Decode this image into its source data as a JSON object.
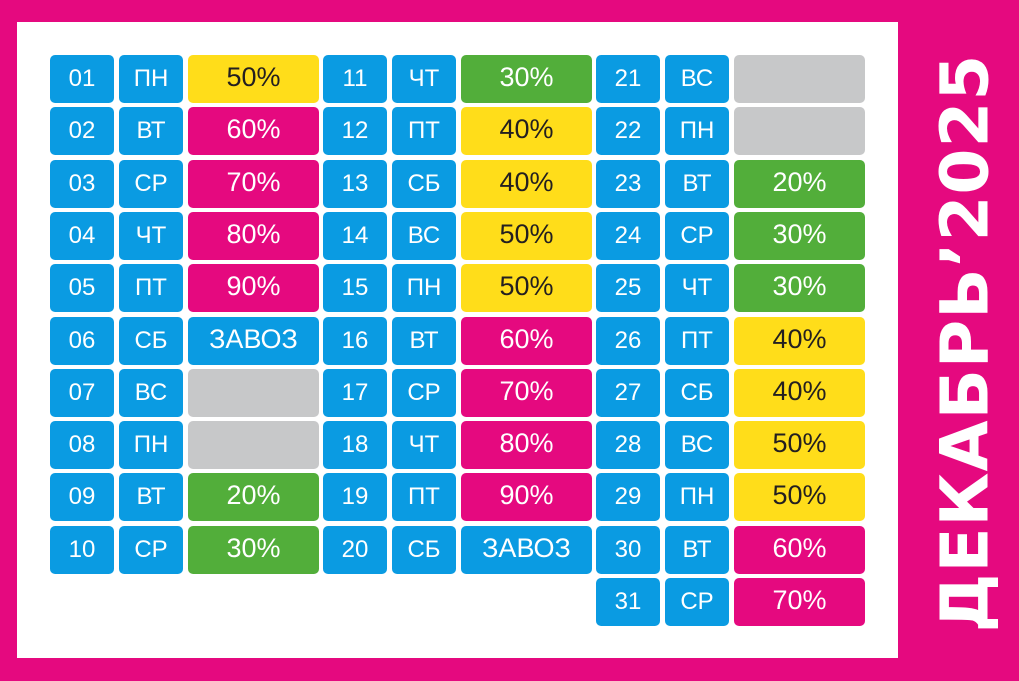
{
  "title": "ДЕКАБРЬ’2025",
  "colors": {
    "background": "#e5097f",
    "panel": "#ffffff",
    "blue": "#0a9be2",
    "yellow": "#ffdd1a",
    "pink": "#e5097f",
    "green": "#52ae3a",
    "gray": "#c7c8c9"
  },
  "columns": [
    {
      "days": [
        {
          "num": "01",
          "dow": "ПН",
          "label": "50%",
          "color": "yellow"
        },
        {
          "num": "02",
          "dow": "ВТ",
          "label": "60%",
          "color": "pink"
        },
        {
          "num": "03",
          "dow": "СР",
          "label": "70%",
          "color": "pink"
        },
        {
          "num": "04",
          "dow": "ЧТ",
          "label": "80%",
          "color": "pink"
        },
        {
          "num": "05",
          "dow": "ПТ",
          "label": "90%",
          "color": "pink"
        },
        {
          "num": "06",
          "dow": "СБ",
          "label": "ЗАВОЗ",
          "color": "blue"
        },
        {
          "num": "07",
          "dow": "ВС",
          "label": "",
          "color": "gray"
        },
        {
          "num": "08",
          "dow": "ПН",
          "label": "",
          "color": "gray"
        },
        {
          "num": "09",
          "dow": "ВТ",
          "label": "20%",
          "color": "green"
        },
        {
          "num": "10",
          "dow": "СР",
          "label": "30%",
          "color": "green"
        }
      ]
    },
    {
      "days": [
        {
          "num": "11",
          "dow": "ЧТ",
          "label": "30%",
          "color": "green"
        },
        {
          "num": "12",
          "dow": "ПТ",
          "label": "40%",
          "color": "yellow"
        },
        {
          "num": "13",
          "dow": "СБ",
          "label": "40%",
          "color": "yellow"
        },
        {
          "num": "14",
          "dow": "ВС",
          "label": "50%",
          "color": "yellow"
        },
        {
          "num": "15",
          "dow": "ПН",
          "label": "50%",
          "color": "yellow"
        },
        {
          "num": "16",
          "dow": "ВТ",
          "label": "60%",
          "color": "pink"
        },
        {
          "num": "17",
          "dow": "СР",
          "label": "70%",
          "color": "pink"
        },
        {
          "num": "18",
          "dow": "ЧТ",
          "label": "80%",
          "color": "pink"
        },
        {
          "num": "19",
          "dow": "ПТ",
          "label": "90%",
          "color": "pink"
        },
        {
          "num": "20",
          "dow": "СБ",
          "label": "ЗАВОЗ",
          "color": "blue"
        }
      ]
    },
    {
      "days": [
        {
          "num": "21",
          "dow": "ВС",
          "label": "",
          "color": "gray"
        },
        {
          "num": "22",
          "dow": "ПН",
          "label": "",
          "color": "gray"
        },
        {
          "num": "23",
          "dow": "ВТ",
          "label": "20%",
          "color": "green"
        },
        {
          "num": "24",
          "dow": "СР",
          "label": "30%",
          "color": "green"
        },
        {
          "num": "25",
          "dow": "ЧТ",
          "label": "30%",
          "color": "green"
        },
        {
          "num": "26",
          "dow": "ПТ",
          "label": "40%",
          "color": "yellow"
        },
        {
          "num": "27",
          "dow": "СБ",
          "label": "40%",
          "color": "yellow"
        },
        {
          "num": "28",
          "dow": "ВС",
          "label": "50%",
          "color": "yellow"
        },
        {
          "num": "29",
          "dow": "ПН",
          "label": "50%",
          "color": "yellow"
        },
        {
          "num": "30",
          "dow": "ВТ",
          "label": "60%",
          "color": "pink"
        },
        {
          "num": "31",
          "dow": "СР",
          "label": "70%",
          "color": "pink"
        }
      ]
    }
  ]
}
